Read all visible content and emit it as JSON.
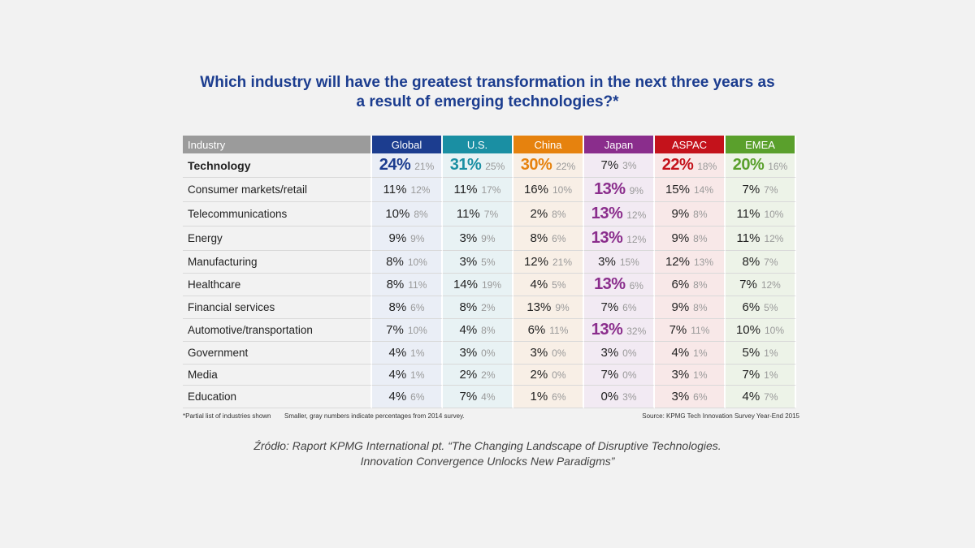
{
  "chart_data": {
    "type": "table",
    "title_line1": "Which industry will have the greatest transformation in the next three years as",
    "title_line2": "a result of emerging technologies?*",
    "header_first": "Industry",
    "regions": [
      {
        "name": "Global",
        "color": "#1c3d8f",
        "bg": "#eaeef6"
      },
      {
        "name": "U.S.",
        "color": "#1a8fa3",
        "bg": "#e8f2f4"
      },
      {
        "name": "China",
        "color": "#e6820e",
        "bg": "#f8efe6"
      },
      {
        "name": "Japan",
        "color": "#8a2d8c",
        "bg": "#f2eaf3"
      },
      {
        "name": "ASPAC",
        "color": "#c4121b",
        "bg": "#f8e8e8"
      },
      {
        "name": "EMEA",
        "color": "#5aa02c",
        "bg": "#edf3e8"
      }
    ],
    "rows": [
      {
        "industry": "Technology",
        "highlight": true,
        "cells": [
          [
            "24%",
            "21%",
            true
          ],
          [
            "31%",
            "25%",
            true
          ],
          [
            "30%",
            "22%",
            true
          ],
          [
            "7%",
            "3%",
            false
          ],
          [
            "22%",
            "18%",
            true
          ],
          [
            "20%",
            "16%",
            true
          ]
        ]
      },
      {
        "industry": "Consumer markets/retail",
        "cells": [
          [
            "11%",
            "12%",
            false
          ],
          [
            "11%",
            "17%",
            false
          ],
          [
            "16%",
            "10%",
            false
          ],
          [
            "13%",
            "9%",
            true
          ],
          [
            "15%",
            "14%",
            false
          ],
          [
            "7%",
            "7%",
            false
          ]
        ]
      },
      {
        "industry": "Telecommunications",
        "cells": [
          [
            "10%",
            "8%",
            false
          ],
          [
            "11%",
            "7%",
            false
          ],
          [
            "2%",
            "8%",
            false
          ],
          [
            "13%",
            "12%",
            true
          ],
          [
            "9%",
            "8%",
            false
          ],
          [
            "11%",
            "10%",
            false
          ]
        ]
      },
      {
        "industry": "Energy",
        "cells": [
          [
            "9%",
            "9%",
            false
          ],
          [
            "3%",
            "9%",
            false
          ],
          [
            "8%",
            "6%",
            false
          ],
          [
            "13%",
            "12%",
            true
          ],
          [
            "9%",
            "8%",
            false
          ],
          [
            "11%",
            "12%",
            false
          ]
        ]
      },
      {
        "industry": "Manufacturing",
        "cells": [
          [
            "8%",
            "10%",
            false
          ],
          [
            "3%",
            "5%",
            false
          ],
          [
            "12%",
            "21%",
            false
          ],
          [
            "3%",
            "15%",
            false
          ],
          [
            "12%",
            "13%",
            false
          ],
          [
            "8%",
            "7%",
            false
          ]
        ]
      },
      {
        "industry": "Healthcare",
        "cells": [
          [
            "8%",
            "11%",
            false
          ],
          [
            "14%",
            "19%",
            false
          ],
          [
            "4%",
            "5%",
            false
          ],
          [
            "13%",
            "6%",
            true
          ],
          [
            "6%",
            "8%",
            false
          ],
          [
            "7%",
            "12%",
            false
          ]
        ]
      },
      {
        "industry": "Financial services",
        "cells": [
          [
            "8%",
            "6%",
            false
          ],
          [
            "8%",
            "2%",
            false
          ],
          [
            "13%",
            "9%",
            false
          ],
          [
            "7%",
            "6%",
            false
          ],
          [
            "9%",
            "8%",
            false
          ],
          [
            "6%",
            "5%",
            false
          ]
        ]
      },
      {
        "industry": "Automotive/transportation",
        "cells": [
          [
            "7%",
            "10%",
            false
          ],
          [
            "4%",
            "8%",
            false
          ],
          [
            "6%",
            "11%",
            false
          ],
          [
            "13%",
            "32%",
            true
          ],
          [
            "7%",
            "11%",
            false
          ],
          [
            "10%",
            "10%",
            false
          ]
        ]
      },
      {
        "industry": "Government",
        "cells": [
          [
            "4%",
            "1%",
            false
          ],
          [
            "3%",
            "0%",
            false
          ],
          [
            "3%",
            "0%",
            false
          ],
          [
            "3%",
            "0%",
            false
          ],
          [
            "4%",
            "1%",
            false
          ],
          [
            "5%",
            "1%",
            false
          ]
        ]
      },
      {
        "industry": "Media",
        "cells": [
          [
            "4%",
            "1%",
            false
          ],
          [
            "2%",
            "2%",
            false
          ],
          [
            "2%",
            "0%",
            false
          ],
          [
            "7%",
            "0%",
            false
          ],
          [
            "3%",
            "1%",
            false
          ],
          [
            "7%",
            "1%",
            false
          ]
        ]
      },
      {
        "industry": "Education",
        "cells": [
          [
            "4%",
            "6%",
            false
          ],
          [
            "7%",
            "4%",
            false
          ],
          [
            "1%",
            "6%",
            false
          ],
          [
            "0%",
            "3%",
            false
          ],
          [
            "3%",
            "6%",
            false
          ],
          [
            "4%",
            "7%",
            false
          ]
        ]
      }
    ]
  },
  "footnotes": {
    "partial": "*Partial list of industries shown",
    "smaller": "Smaller, gray numbers indicate percentages from 2014 survey.",
    "source": "Source: KPMG Tech Innovation Survey Year-End 2015"
  },
  "caption": {
    "line1": "Źródło: Raport KPMG International pt. “The Changing Landscape of Disruptive Technologies.",
    "line2": "Innovation Convergence Unlocks New Paradigms”"
  }
}
